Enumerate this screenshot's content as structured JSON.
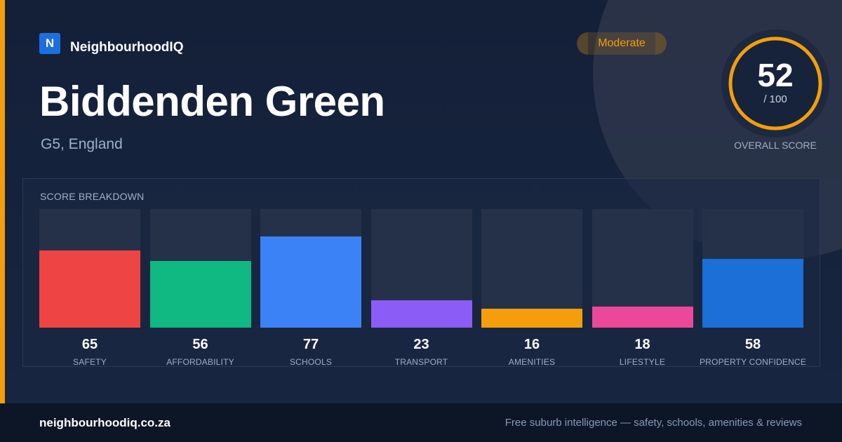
{
  "brand": {
    "logo_letter": "N",
    "name": "NeighbourhoodIQ"
  },
  "badge": {
    "label": "Moderate"
  },
  "location": {
    "title": "Biddenden Green",
    "subtitle": "G5, England"
  },
  "overall": {
    "value": "52",
    "max_label": "/ 100",
    "label": "OVERALL SCORE",
    "score": 52,
    "max": 100
  },
  "chart_data": {
    "type": "bar",
    "title": "SCORE BREAKDOWN",
    "categories": [
      "SAFETY",
      "AFFORDABILITY",
      "SCHOOLS",
      "TRANSPORT",
      "AMENITIES",
      "LIFESTYLE",
      "PROPERTY CONFIDENCE"
    ],
    "values": [
      65,
      56,
      77,
      23,
      16,
      18,
      58
    ],
    "colors": [
      "#ef4444",
      "#10b981",
      "#3b82f6",
      "#8b5cf6",
      "#f59e0b",
      "#ec4899",
      "#1d6fd8"
    ],
    "ylim": [
      0,
      100
    ],
    "grid": false,
    "legend": "none"
  },
  "footer": {
    "url": "neighbourhoodiq.co.za",
    "tagline": "Free suburb intelligence — safety, schools, amenities & reviews"
  },
  "colors": {
    "accent": "#f59e0b",
    "background": "#16233b",
    "footer": "#0d1626",
    "logo": "#1d6fe0"
  }
}
